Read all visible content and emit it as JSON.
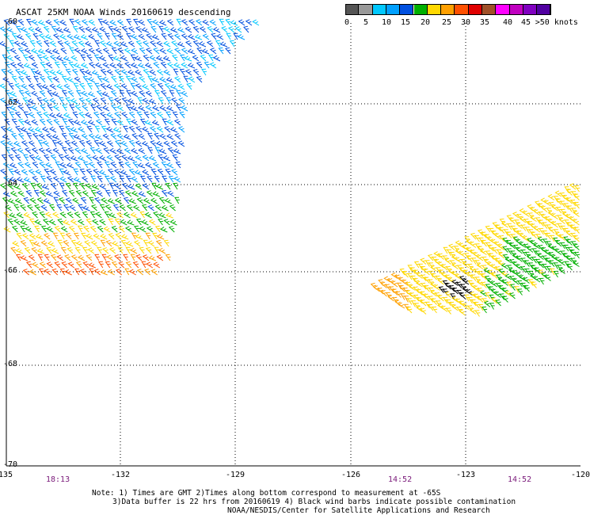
{
  "title": "ASCAT 25KM NOAA Winds 20160619 descending",
  "colorbar": {
    "ticks": [
      "0",
      "5",
      "10",
      "15",
      "20",
      "25",
      "30",
      "35",
      "40",
      "45",
      ">50 knots"
    ],
    "colors": [
      "#555555",
      "#999999",
      "#00c8ff",
      "#00a0ff",
      "#0050e0",
      "#00b000",
      "#ffd800",
      "#ffa000",
      "#ff5000",
      "#e00000",
      "#a05028",
      "#ff00ff",
      "#c000c0",
      "#8000c0",
      "#5000a0"
    ]
  },
  "map": {
    "lat_labels": [
      "-60",
      "-62",
      "-64",
      "-66",
      "-68",
      "-70"
    ],
    "lon_labels": [
      "-135",
      "-132",
      "-129",
      "-126",
      "-123",
      "-120"
    ],
    "time_labels": [
      "18:13",
      "14:52",
      "14:52"
    ]
  },
  "notes": [
    "Note: 1) Times are GMT 2)Times along bottom correspond to measurement at -65S",
    "3)Data buffer is 22 hrs from 20160619 4) Black wind barbs indicate possible contamination",
    "NOAA/NESDIS/Center for Satellite Applications and Research"
  ]
}
